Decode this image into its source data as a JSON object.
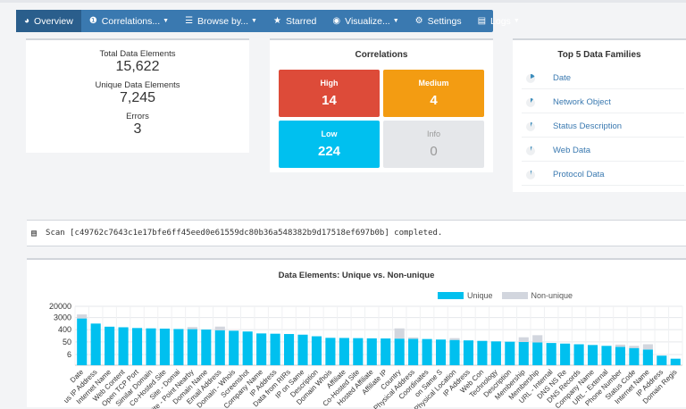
{
  "nav": [
    {
      "label": "Overview",
      "icon": "dashboard-icon",
      "caret": false,
      "active": true
    },
    {
      "label": "Correlations...",
      "icon": "info-circle-icon",
      "caret": true,
      "active": false
    },
    {
      "label": "Browse by...",
      "icon": "list-icon",
      "caret": true,
      "active": false
    },
    {
      "label": "Starred",
      "icon": "star-icon",
      "caret": false,
      "active": false
    },
    {
      "label": "Visualize...",
      "icon": "eye-icon",
      "caret": true,
      "active": false
    },
    {
      "label": "Settings",
      "icon": "gear-icon",
      "caret": false,
      "active": false
    },
    {
      "label": "Logs",
      "icon": "book-icon",
      "caret": true,
      "active": false
    }
  ],
  "stats": {
    "total_label": "Total Data Elements",
    "total_value": "15,622",
    "unique_label": "Unique Data Elements",
    "unique_value": "7,245",
    "errors_label": "Errors",
    "errors_value": "3"
  },
  "correlations": {
    "title": "Correlations",
    "high_label": "High",
    "high_value": "14",
    "high_color": "#dd4b39",
    "medium_label": "Medium",
    "medium_value": "4",
    "medium_color": "#f39c12",
    "low_label": "Low",
    "low_value": "224",
    "low_color": "#00c0ef",
    "info_label": "Info",
    "info_value": "0",
    "info_color": "#e5e7ea"
  },
  "families": {
    "title": "Top 5 Data Families",
    "items": [
      {
        "name": "Date",
        "share": 0.18
      },
      {
        "name": "Network Object",
        "share": 0.1
      },
      {
        "name": "Status Description",
        "share": 0.06
      },
      {
        "name": "Web Data",
        "share": 0.05
      },
      {
        "name": "Protocol Data",
        "share": 0.04
      }
    ]
  },
  "scan": {
    "text": "Scan [c49762c7643c1e17bfe6ff45eed0e61559dc80b36a548382b9d17518ef697b0b] completed."
  },
  "chart_data": {
    "type": "bar",
    "title": "Data Elements: Unique vs. Non-unique",
    "scale": "log",
    "yticks": [
      "20000",
      "3000",
      "400",
      "50",
      "6"
    ],
    "ytick_values": [
      20000,
      3000,
      400,
      50,
      6
    ],
    "ylim": [
      1,
      20000
    ],
    "stacked": true,
    "colors": {
      "unique": "#00c0ef",
      "nonunique": "#d2d6de"
    },
    "categories": [
      "Date",
      "us IP Address",
      "Internet Name",
      "Web Content",
      "Open TCP Port",
      "Similar Domain",
      "Co-Hosted Site",
      "Site - Domai",
      "Site - Point Nearby",
      "Domain Name",
      "Email Address",
      "Domain - Whois",
      "Screenshot",
      "Company Name",
      "IP Address",
      "Data from RIRs",
      "IP on Same",
      "Description",
      "Domain Whois",
      "Affiliate",
      "Co-Hosted Site",
      "Hosted Affiliate",
      "Affiliate IP",
      "Country",
      "Physical Address",
      "Coordinates",
      "on Same S",
      "Physical Location",
      "IP Address",
      "Web Con",
      "Technology",
      "Description",
      "Membership",
      "Membership",
      "URL - Internal",
      "DNS NS Re",
      "DNS Records",
      "Company Name",
      "URL - External",
      "Phone Number",
      "Status Code",
      "Internet Name",
      "IP Address",
      "Domain Regis"
    ],
    "series": [
      {
        "name": "Unique",
        "values": [
          2600,
          1100,
          650,
          590,
          520,
          490,
          470,
          440,
          430,
          400,
          360,
          330,
          290,
          210,
          200,
          190,
          170,
          130,
          100,
          98,
          95,
          92,
          90,
          88,
          85,
          82,
          75,
          70,
          65,
          60,
          55,
          52,
          50,
          46,
          42,
          38,
          34,
          30,
          26,
          22,
          18,
          14,
          5,
          3
        ]
      },
      {
        "name": "Non-unique",
        "values": [
          2500,
          0,
          0,
          0,
          0,
          0,
          0,
          0,
          180,
          0,
          300,
          0,
          0,
          0,
          0,
          0,
          0,
          0,
          0,
          0,
          0,
          0,
          0,
          400,
          22,
          0,
          0,
          25,
          0,
          0,
          0,
          0,
          60,
          110,
          0,
          0,
          0,
          0,
          0,
          10,
          8,
          20,
          0,
          0
        ]
      }
    ]
  }
}
